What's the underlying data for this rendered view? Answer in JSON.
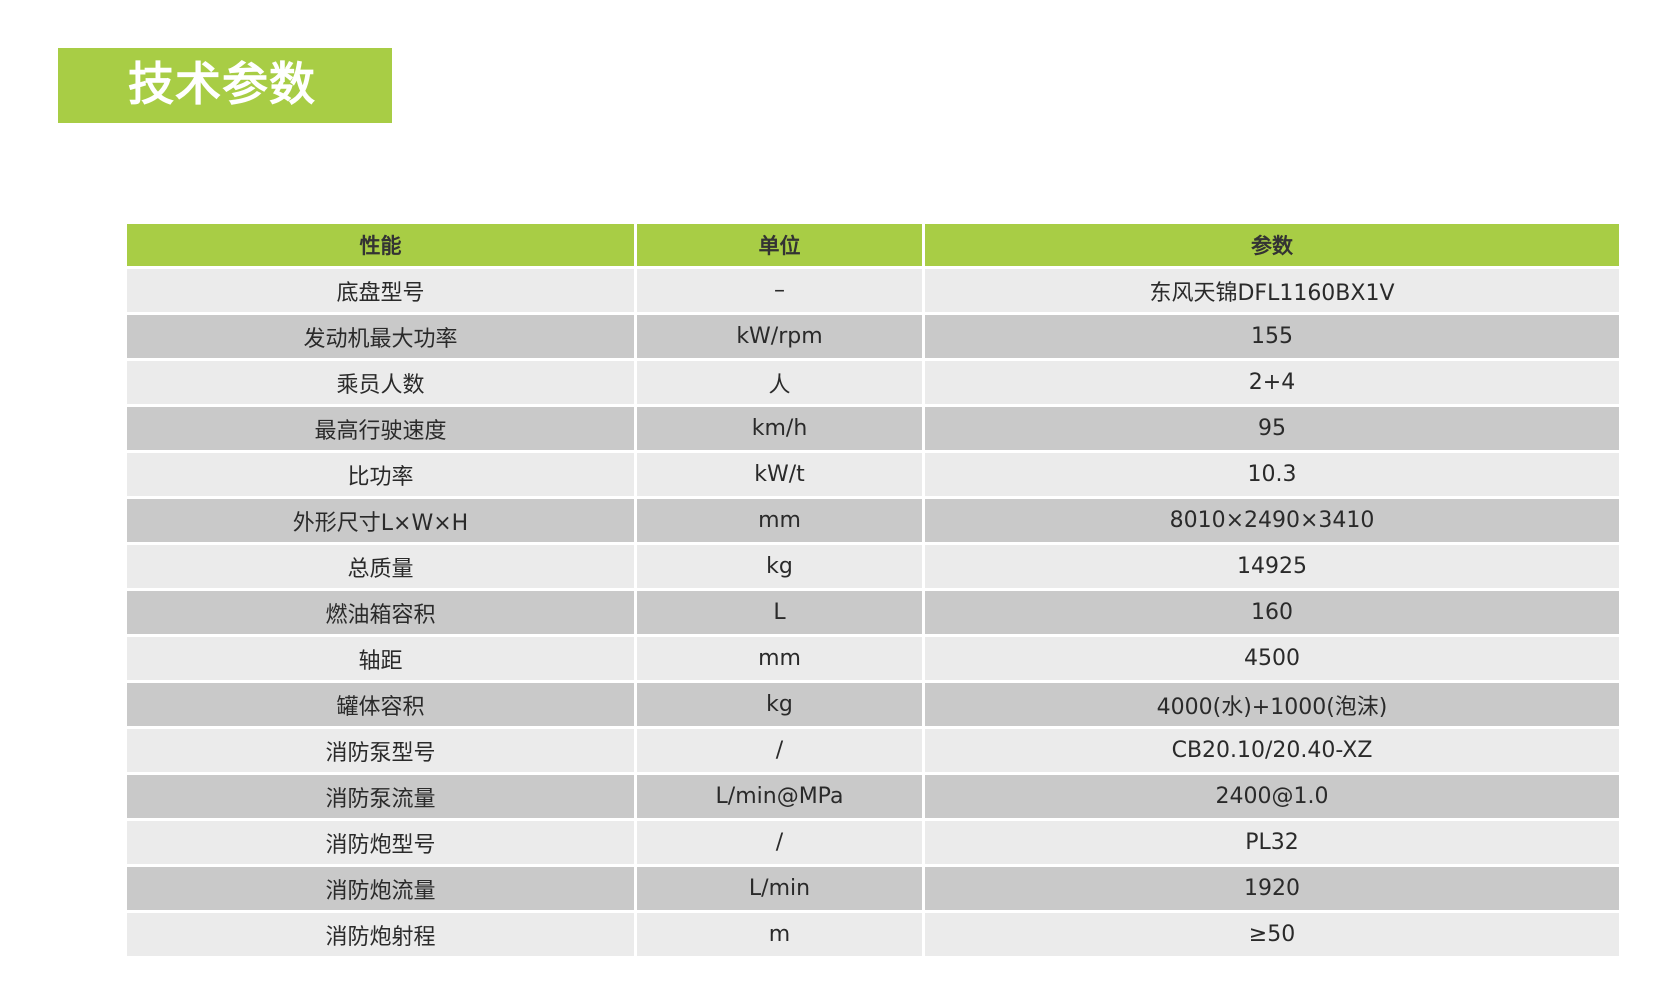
{
  "title": "技术参数",
  "colors": {
    "accent": "#a8cd45",
    "row_light": "#ebebeb",
    "row_dark": "#c9c9c9"
  },
  "table": {
    "headers": [
      "性能",
      "单位",
      "参数"
    ],
    "rows": [
      [
        "底盘型号",
        "–",
        "东风天锦DFL1160BX1V"
      ],
      [
        "发动机最大功率",
        "kW/rpm",
        "155"
      ],
      [
        "乘员人数",
        "人",
        "2+4"
      ],
      [
        "最高行驶速度",
        "km/h",
        "95"
      ],
      [
        "比功率",
        "kW/t",
        "10.3"
      ],
      [
        "外形尺寸L×W×H",
        "mm",
        "8010×2490×3410"
      ],
      [
        "总质量",
        "kg",
        "14925"
      ],
      [
        "燃油箱容积",
        "L",
        "160"
      ],
      [
        "轴距",
        "mm",
        "4500"
      ],
      [
        "罐体容积",
        "kg",
        "4000(水)+1000(泡沫)"
      ],
      [
        "消防泵型号",
        "/",
        "CB20.10/20.40-XZ"
      ],
      [
        "消防泵流量",
        "L/min@MPa",
        "2400@1.0"
      ],
      [
        "消防炮型号",
        "/",
        "PL32"
      ],
      [
        "消防炮流量",
        "L/min",
        "1920"
      ],
      [
        "消防炮射程",
        "m",
        "≥50"
      ]
    ]
  }
}
